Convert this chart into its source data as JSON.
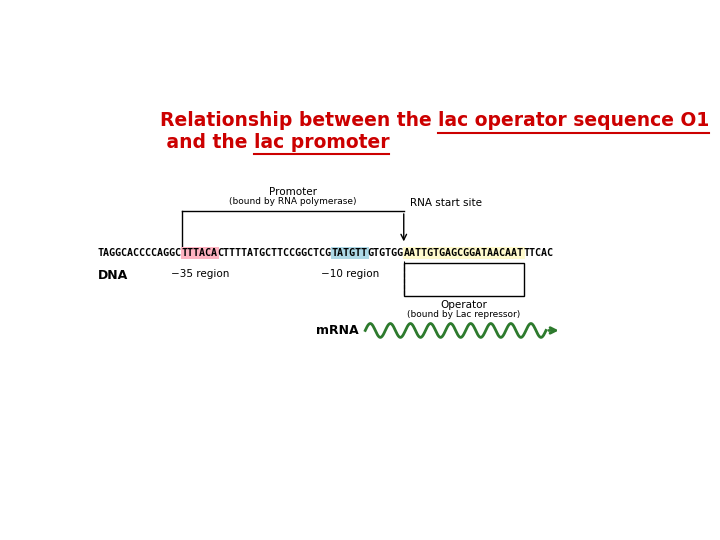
{
  "bg_color": "#ffffff",
  "title_color": "#cc0000",
  "dna_seq_before_m35": "TAGGCACCCCAGGC",
  "dna_seq_m35": "TTTACA",
  "dna_seq_between_m35_m10": "CTTTTATGCTTCCGGCTCG",
  "dna_seq_m10": "TATGTT",
  "dna_seq_after_m10": "GTGTGG",
  "dna_seq_operator": "AATTGTGAGCGGATAACAAT",
  "dna_seq_after_op": "TTCAC",
  "m35_bg": "#ffb3c1",
  "m10_bg": "#add8e6",
  "operator_bg": "#fffacd",
  "wavy_color": "#2d7a2d",
  "line_color": "#000000",
  "seq_fontsize": 7.2,
  "label_fontsize": 7.5,
  "small_label_fontsize": 6.5,
  "title_fontsize": 13.5
}
